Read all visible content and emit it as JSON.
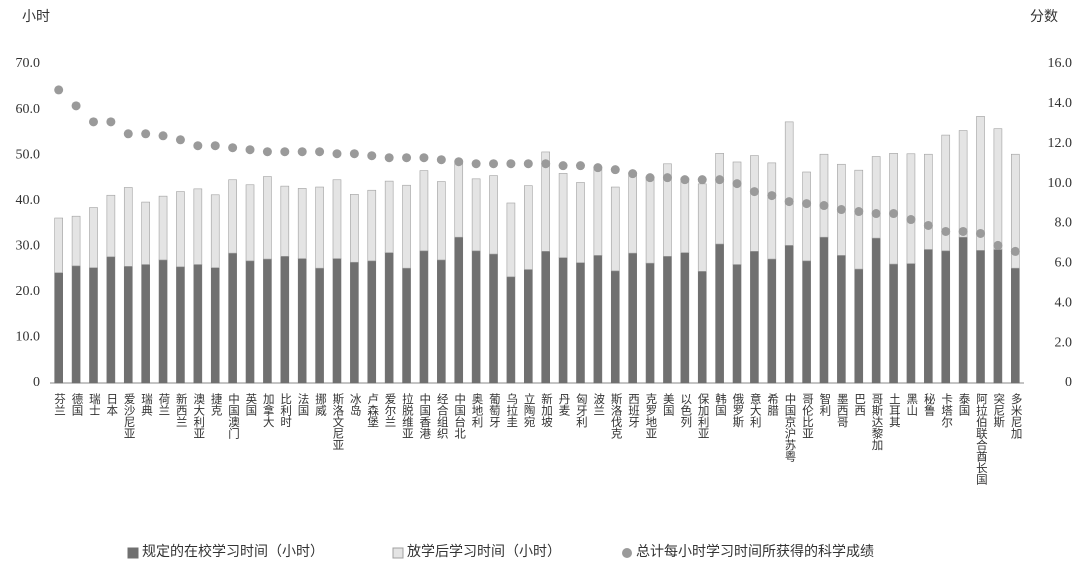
{
  "chart_data": {
    "type": "bar",
    "stacked": true,
    "y_label": "小时",
    "y2_label": "分数",
    "categories": [
      "芬兰",
      "德国",
      "瑞士",
      "日本",
      "爱沙尼亚",
      "瑞典",
      "荷兰",
      "新西兰",
      "澳大利亚",
      "捷克",
      "中国澳门",
      "英国",
      "加拿大",
      "比利时",
      "法国",
      "挪威",
      "斯洛文尼亚",
      "冰岛",
      "卢森堡",
      "爱尔兰",
      "拉脱维亚",
      "中国香港",
      "经合组织",
      "中国台北",
      "奥地利",
      "葡萄牙",
      "乌拉圭",
      "立陶宛",
      "新加坡",
      "丹麦",
      "匈牙利",
      "波兰",
      "斯洛伐克",
      "西班牙",
      "克罗地亚",
      "美国",
      "以色列",
      "保加利亚",
      "韩国",
      "俄罗斯",
      "意大利",
      "希腊",
      "中国京沪苏粤",
      "哥伦比亚",
      "智利",
      "墨西哥",
      "巴西",
      "哥斯达黎加",
      "土耳其",
      "黑山",
      "秘鲁",
      "卡塔尔",
      "泰国",
      "阿拉伯联合酋长国",
      "突尼斯",
      "多米尼加"
    ],
    "series": [
      {
        "name": "规定的在校学习时间（小时）",
        "color": "#707070",
        "values": [
          24.2,
          25.7,
          25.3,
          27.7,
          25.6,
          26.0,
          27.0,
          25.5,
          26.0,
          25.3,
          28.5,
          26.8,
          27.2,
          27.8,
          27.3,
          25.2,
          27.3,
          26.5,
          26.8,
          28.6,
          25.2,
          29.0,
          27.0,
          32.0,
          29.0,
          28.3,
          23.3,
          24.9,
          28.9,
          27.5,
          26.4,
          28.0,
          24.6,
          28.5,
          26.3,
          27.8,
          28.6,
          24.5,
          30.5,
          26.0,
          28.9,
          27.2,
          30.2,
          26.8,
          32.0,
          28.0,
          25.0,
          31.8,
          26.1,
          26.2,
          29.3,
          29.0,
          32.0,
          29.1,
          29.3,
          25.2
        ]
      },
      {
        "name": "放学后学习时间（小时）",
        "color": "#e4e4e4",
        "values": [
          12.0,
          10.9,
          13.2,
          13.5,
          17.3,
          13.7,
          14.0,
          16.5,
          16.6,
          16.0,
          16.1,
          16.7,
          18.1,
          15.4,
          15.4,
          17.8,
          17.3,
          14.9,
          15.5,
          15.7,
          18.2,
          17.6,
          17.2,
          16.4,
          15.8,
          17.2,
          16.2,
          18.4,
          21.8,
          18.5,
          17.6,
          19.0,
          18.4,
          17.7,
          18.9,
          20.3,
          16.4,
          19.2,
          19.9,
          22.5,
          21.0,
          21.1,
          27.1,
          19.5,
          18.2,
          20.0,
          21.7,
          17.9,
          24.3,
          24.1,
          20.9,
          25.4,
          23.4,
          29.4,
          26.5,
          25.0
        ]
      },
      {
        "name": "总计每小时学习时间所获得的科学成绩",
        "color": "#9a9a9a",
        "axis": "y2",
        "values": [
          14.7,
          13.9,
          13.1,
          13.1,
          12.5,
          12.5,
          12.4,
          12.2,
          11.9,
          11.9,
          11.8,
          11.7,
          11.6,
          11.6,
          11.6,
          11.6,
          11.5,
          11.5,
          11.4,
          11.3,
          11.3,
          11.3,
          11.2,
          11.1,
          11.0,
          11.0,
          11.0,
          11.0,
          11.0,
          10.9,
          10.9,
          10.8,
          10.7,
          10.5,
          10.3,
          10.3,
          10.2,
          10.2,
          10.2,
          10.0,
          9.6,
          9.4,
          9.1,
          9.0,
          8.9,
          8.7,
          8.6,
          8.5,
          8.5,
          8.2,
          7.9,
          7.6,
          7.6,
          7.5,
          6.9,
          6.6
        ]
      }
    ],
    "ylim": [
      0,
      70
    ],
    "yticks": [
      {
        "value": 0,
        "label": "0"
      },
      {
        "value": 10,
        "label": "10.0"
      },
      {
        "value": 20,
        "label": "20.0"
      },
      {
        "value": 30,
        "label": "30.0"
      },
      {
        "value": 40,
        "label": "40.0"
      },
      {
        "value": 50,
        "label": "50.0"
      },
      {
        "value": 60,
        "label": "60.0"
      },
      {
        "value": 70,
        "label": "70.0"
      }
    ],
    "y2lim": [
      0,
      16
    ],
    "y2ticks": [
      {
        "value": 0,
        "label": "0"
      },
      {
        "value": 2,
        "label": "2.0"
      },
      {
        "value": 4,
        "label": "4.0"
      },
      {
        "value": 6,
        "label": "6.0"
      },
      {
        "value": 8,
        "label": "8.0"
      },
      {
        "value": 10,
        "label": "10.0"
      },
      {
        "value": 12,
        "label": "12.0"
      },
      {
        "value": 14,
        "label": "14.0"
      },
      {
        "value": 16,
        "label": "16.0"
      }
    ]
  }
}
